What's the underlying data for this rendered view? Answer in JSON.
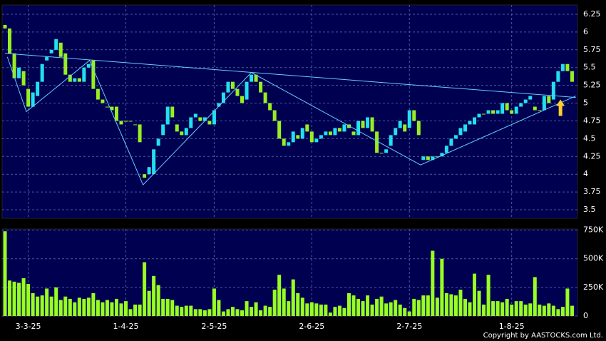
{
  "chart_data": {
    "type": "candlestick",
    "categories": [
      null,
      null,
      null,
      null,
      null,
      "3-3-25",
      null,
      null,
      null,
      null,
      null,
      null,
      null,
      null,
      null,
      null,
      null,
      null,
      null,
      null,
      null,
      null,
      null,
      null,
      null,
      null,
      "1-4-25",
      null,
      null,
      null,
      null,
      null,
      null,
      null,
      null,
      null,
      null,
      null,
      null,
      null,
      null,
      null,
      null,
      null,
      null,
      "2-5-25",
      null,
      null,
      null,
      null,
      null,
      null,
      null,
      null,
      null,
      null,
      null,
      null,
      null,
      null,
      null,
      null,
      null,
      null,
      null,
      null,
      "2-6-25",
      null,
      null,
      null,
      null,
      null,
      null,
      null,
      null,
      null,
      null,
      null,
      null,
      null,
      null,
      null,
      null,
      null,
      null,
      null,
      null,
      "2-7-25",
      null,
      null,
      null,
      null,
      null,
      null,
      null,
      null,
      null,
      null,
      null,
      null,
      null,
      null,
      null,
      null,
      null,
      null,
      null,
      null,
      null,
      "1-8-25",
      null,
      null,
      null,
      null,
      null,
      null,
      null,
      null,
      null,
      null,
      null,
      null,
      null
    ],
    "open": [
      6.1,
      6.05,
      5.7,
      5.35,
      5.45,
      5.2,
      4.95,
      5.1,
      5.3,
      5.6,
      5.7,
      5.75,
      5.85,
      5.7,
      5.4,
      5.3,
      5.35,
      5.3,
      5.5,
      5.6,
      5.2,
      5.05,
      4.95,
      4.95,
      4.95,
      4.75,
      4.75,
      4.75,
      4.7,
      4.7,
      4.0,
      4.0,
      4.0,
      4.4,
      4.55,
      4.7,
      4.95,
      4.7,
      4.6,
      4.55,
      4.65,
      4.8,
      4.8,
      4.75,
      4.75,
      4.7,
      4.95,
      5.0,
      5.15,
      5.3,
      5.2,
      5.1,
      5.05,
      5.3,
      5.4,
      5.3,
      5.15,
      5.0,
      4.9,
      4.75,
      4.5,
      4.4,
      4.45,
      4.55,
      4.5,
      4.7,
      4.6,
      4.45,
      4.5,
      4.55,
      4.6,
      4.55,
      4.65,
      4.6,
      4.7,
      4.6,
      4.55,
      4.75,
      4.65,
      4.8,
      4.6,
      4.3,
      4.3,
      4.4,
      4.55,
      4.65,
      4.7,
      4.65,
      4.9,
      4.75,
      4.2,
      4.25,
      4.2,
      4.25,
      4.25,
      4.3,
      4.4,
      4.5,
      4.55,
      4.6,
      4.7,
      4.7,
      4.8,
      4.85,
      4.85,
      4.9,
      4.85,
      4.85,
      5.0,
      4.9,
      4.85,
      4.95,
      5.0,
      5.05,
      4.95,
      4.9,
      4.9,
      5.1,
      5.05,
      5.3,
      5.45,
      5.55,
      5.45
    ],
    "close": [
      6.05,
      5.7,
      5.35,
      5.5,
      5.25,
      4.95,
      5.15,
      5.3,
      5.55,
      5.65,
      5.75,
      5.9,
      5.65,
      5.4,
      5.3,
      5.35,
      5.3,
      5.5,
      5.55,
      5.2,
      5.05,
      5.0,
      4.95,
      4.9,
      4.75,
      4.7,
      4.75,
      4.75,
      4.7,
      4.45,
      3.95,
      4.1,
      4.35,
      4.5,
      4.7,
      4.95,
      4.8,
      4.6,
      4.55,
      4.65,
      4.8,
      4.85,
      4.75,
      4.8,
      4.7,
      4.9,
      5.0,
      5.15,
      5.3,
      5.2,
      5.1,
      5.0,
      5.3,
      5.4,
      5.3,
      5.15,
      5.0,
      4.9,
      4.75,
      4.5,
      4.4,
      4.45,
      4.6,
      4.5,
      4.65,
      4.6,
      4.45,
      4.5,
      4.55,
      4.6,
      4.55,
      4.65,
      4.6,
      4.7,
      4.65,
      4.55,
      4.75,
      4.65,
      4.8,
      4.6,
      4.3,
      4.3,
      4.35,
      4.55,
      4.65,
      4.75,
      4.6,
      4.9,
      4.75,
      4.55,
      4.25,
      4.2,
      4.25,
      4.25,
      4.3,
      4.4,
      4.5,
      4.55,
      4.65,
      4.7,
      4.75,
      4.8,
      4.85,
      4.85,
      4.9,
      4.85,
      4.9,
      5.0,
      4.9,
      4.85,
      4.95,
      5.0,
      5.05,
      5.1,
      4.9,
      4.9,
      5.1,
      5.0,
      5.3,
      5.45,
      5.55,
      5.45,
      5.3
    ],
    "volume": [
      740000,
      310000,
      300000,
      290000,
      330000,
      280000,
      200000,
      170000,
      180000,
      240000,
      170000,
      250000,
      140000,
      170000,
      150000,
      120000,
      160000,
      150000,
      160000,
      200000,
      140000,
      120000,
      140000,
      120000,
      150000,
      110000,
      130000,
      60000,
      100000,
      100000,
      470000,
      220000,
      350000,
      270000,
      150000,
      150000,
      140000,
      90000,
      80000,
      90000,
      90000,
      60000,
      60000,
      50000,
      60000,
      240000,
      140000,
      40000,
      60000,
      80000,
      60000,
      50000,
      130000,
      80000,
      120000,
      50000,
      90000,
      80000,
      230000,
      360000,
      240000,
      130000,
      320000,
      200000,
      160000,
      110000,
      120000,
      110000,
      100000,
      100000,
      30000,
      80000,
      90000,
      70000,
      200000,
      180000,
      150000,
      130000,
      180000,
      100000,
      150000,
      170000,
      110000,
      120000,
      140000,
      100000,
      70000,
      40000,
      150000,
      140000,
      180000,
      180000,
      570000,
      160000,
      500000,
      200000,
      190000,
      180000,
      230000,
      150000,
      120000,
      370000,
      220000,
      100000,
      360000,
      130000,
      130000,
      120000,
      150000,
      100000,
      130000,
      130000,
      100000,
      110000,
      340000,
      100000,
      90000,
      110000,
      90000,
      60000,
      80000,
      240000,
      90000
    ],
    "up_color": "#22e0f0",
    "down_color": "#99ee22",
    "volume_color": "#99ff22",
    "ylim": [
      3.38,
      6.38
    ],
    "yticks": [
      6.25,
      6,
      5.75,
      5.5,
      5.25,
      5,
      4.75,
      4.5,
      4.25,
      4,
      3.75,
      3.5
    ],
    "volume_ylim": [
      0,
      760000
    ],
    "volume_ticks": [
      {
        "value": 750000,
        "label": "750K"
      },
      {
        "value": 500000,
        "label": "500K"
      },
      {
        "value": 250000,
        "label": "250K"
      },
      0
    ],
    "grid": true,
    "trendlines": [
      {
        "color": "#66ccff",
        "points": [
          [
            0,
            5.7
          ],
          [
            122.8,
            5.08
          ]
        ]
      },
      {
        "color": "#66ccff",
        "points": [
          [
            0.5,
            5.65
          ],
          [
            4.6,
            4.88
          ],
          [
            18.2,
            5.6
          ],
          [
            29.7,
            3.85
          ],
          [
            53,
            5.43
          ],
          [
            89.4,
            4.13
          ],
          [
            122.8,
            5.1
          ]
        ]
      }
    ],
    "marker": {
      "index": 119.5,
      "top": 5.05,
      "bottom": 4.82,
      "color": "#ffcc33"
    },
    "copyright": "Copyright by AASTOCKS.com Ltd."
  }
}
